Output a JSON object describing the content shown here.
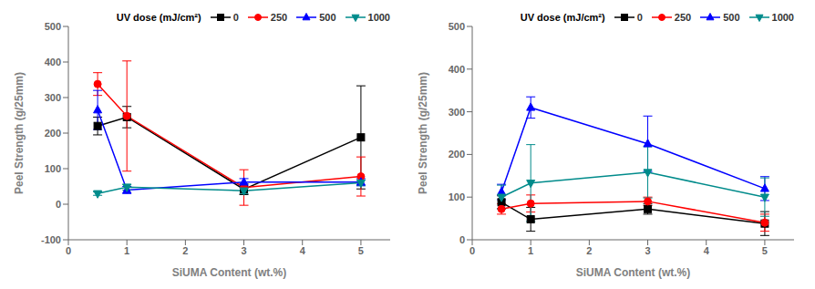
{
  "chart_data": [
    {
      "type": "line",
      "xlabel": "SiUMA Content (wt.%)",
      "ylabel": "Peel Strength (g/25mm)",
      "legend_title": "UV dose (mJ/cm²)",
      "legend": "upper right",
      "grid": false,
      "x": [
        0.5,
        1,
        3,
        5
      ],
      "xlim": [
        0,
        5.5
      ],
      "xticks": [
        0,
        1,
        2,
        3,
        4,
        5
      ],
      "ylim": [
        -100,
        500
      ],
      "yticks": [
        -100,
        0,
        100,
        200,
        300,
        400,
        500
      ],
      "series": [
        {
          "name": "0",
          "color": "#000000",
          "marker": "square",
          "values": [
            220,
            245,
            42,
            188
          ],
          "yerr": [
            25,
            30,
            15,
            145
          ]
        },
        {
          "name": "250",
          "color": "#ff0000",
          "marker": "circle",
          "values": [
            338,
            248,
            47,
            78
          ],
          "yerr": [
            32,
            155,
            50,
            55
          ]
        },
        {
          "name": "500",
          "color": "#0000ff",
          "marker": "triangle_up",
          "values": [
            265,
            40,
            62,
            62
          ],
          "yerr": [
            55,
            10,
            10,
            10
          ]
        },
        {
          "name": "1000",
          "color": "#008B8B",
          "marker": "triangle_down",
          "values": [
            30,
            48,
            38,
            60
          ],
          "yerr": [
            5,
            8,
            8,
            8
          ]
        }
      ]
    },
    {
      "type": "line",
      "xlabel": "SiUMA Content (wt.%)",
      "ylabel": "Peel Strength (g/25mm)",
      "legend_title": "UV dose (mJ/cm²)",
      "legend": "upper right",
      "grid": false,
      "x": [
        0.5,
        1,
        3,
        5
      ],
      "xlim": [
        0,
        5.5
      ],
      "xticks": [
        0,
        1,
        2,
        3,
        4,
        5
      ],
      "ylim": [
        0,
        500
      ],
      "yticks": [
        0,
        100,
        200,
        300,
        400,
        500
      ],
      "series": [
        {
          "name": "0",
          "color": "#000000",
          "marker": "square",
          "values": [
            88,
            48,
            72,
            38
          ],
          "yerr": [
            15,
            28,
            12,
            28
          ]
        },
        {
          "name": "250",
          "color": "#ff0000",
          "marker": "circle",
          "values": [
            72,
            85,
            90,
            40
          ],
          "yerr": [
            12,
            20,
            10,
            20
          ]
        },
        {
          "name": "500",
          "color": "#0000ff",
          "marker": "triangle_up",
          "values": [
            112,
            310,
            225,
            120
          ],
          "yerr": [
            18,
            25,
            65,
            28
          ]
        },
        {
          "name": "1000",
          "color": "#008B8B",
          "marker": "triangle_down",
          "values": [
            100,
            133,
            158,
            100
          ],
          "yerr": [
            28,
            90,
            60,
            45
          ]
        }
      ]
    }
  ]
}
